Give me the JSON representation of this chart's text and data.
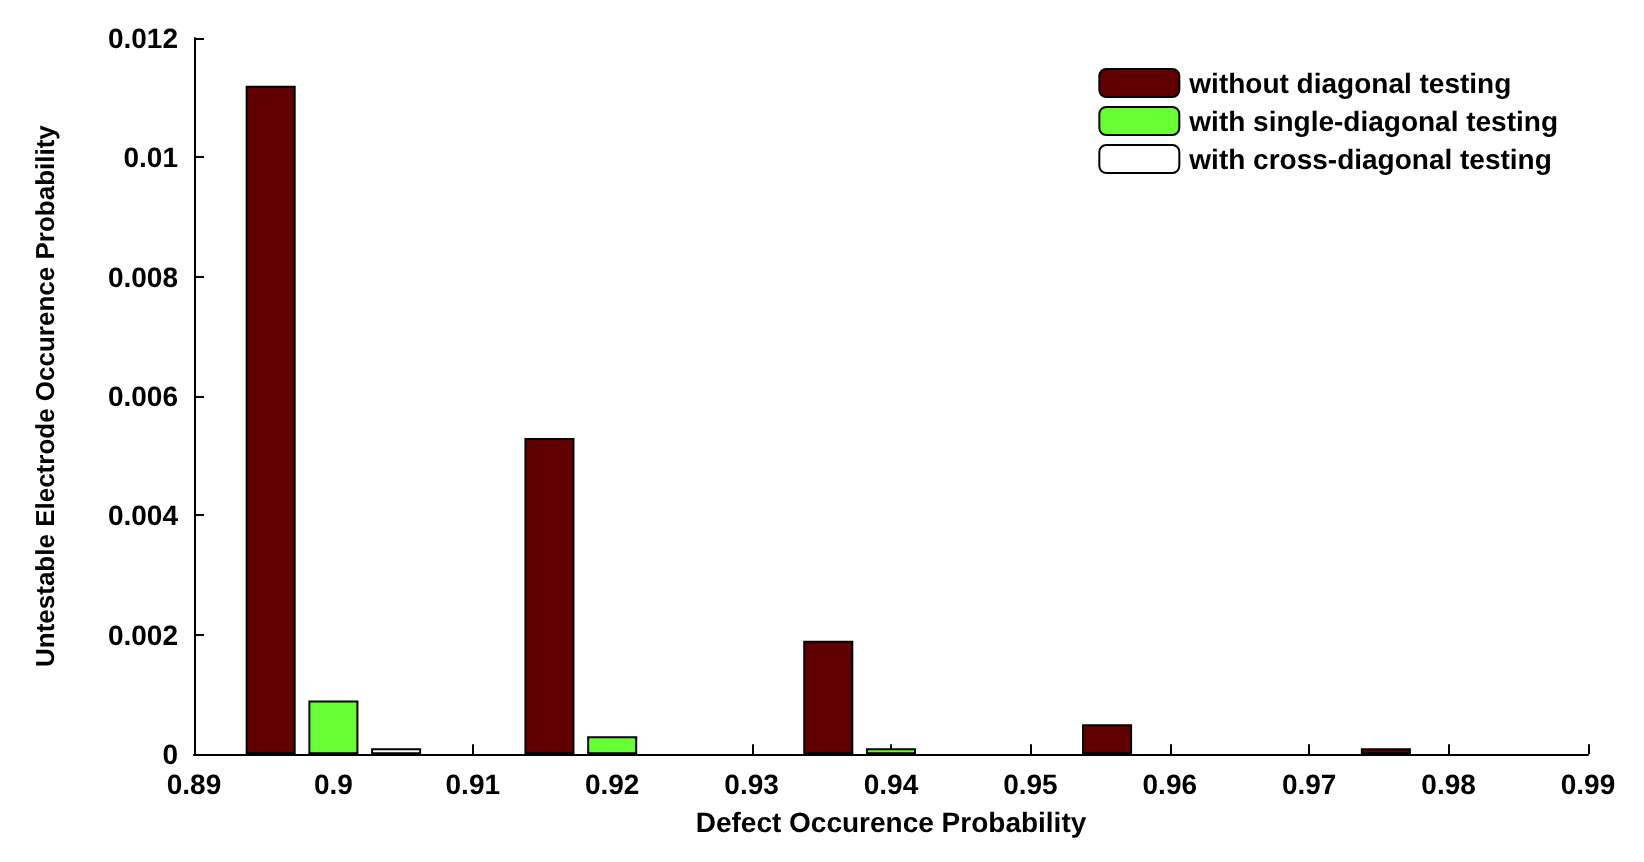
{
  "chart_data": {
    "type": "bar",
    "xlabel": "Defect Occurence Probability",
    "ylabel": "Untestable Electrode Occurence Probability",
    "xlim": [
      0.89,
      0.99
    ],
    "xticks": [
      0.89,
      0.9,
      0.91,
      0.92,
      0.93,
      0.94,
      0.95,
      0.96,
      0.97,
      0.98,
      0.99
    ],
    "ylim": [
      0,
      0.012
    ],
    "yticks": [
      0,
      0.002,
      0.004,
      0.006,
      0.008,
      0.01,
      0.012
    ],
    "grid": false,
    "legend": "top right",
    "series": [
      {
        "name": "without diagonal testing",
        "color": "#600000",
        "x": [
          0.8955,
          0.9155,
          0.9355,
          0.9555,
          0.9755
        ],
        "values": [
          0.0112,
          0.0053,
          0.0019,
          0.0005,
          0.0001
        ]
      },
      {
        "name": "with single-diagonal testing",
        "color": "#66ff33",
        "x": [
          0.9,
          0.92,
          0.94,
          0.96,
          0.98
        ],
        "values": [
          0.0009,
          0.0003,
          0.0001,
          0,
          0
        ]
      },
      {
        "name": "with cross-diagonal testing",
        "color": "#ffffff",
        "x": [
          0.9045,
          0.9245,
          0.9445,
          0.9645,
          0.9845
        ],
        "values": [
          0.0001,
          0,
          0,
          0,
          0
        ]
      }
    ]
  }
}
